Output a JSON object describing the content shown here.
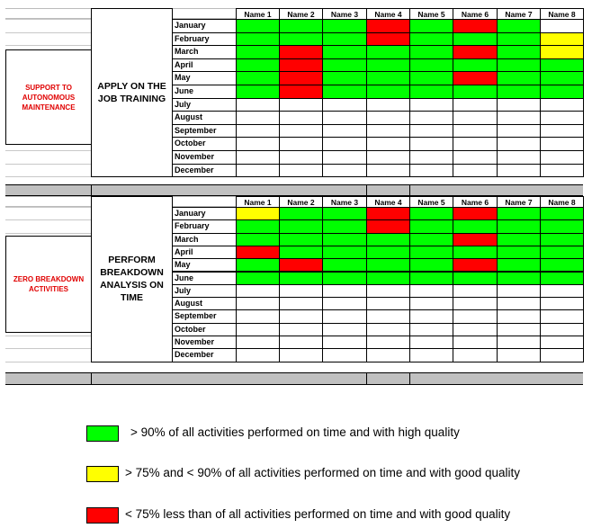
{
  "colors": {
    "green": "#00ff00",
    "yellow": "#ffff00",
    "red": "#ff0000",
    "divider_gray": "#c0c0c0",
    "section_text_red": "#e00000"
  },
  "names": [
    "Name 1",
    "Name 2",
    "Name 3",
    "Name 4",
    "Name 5",
    "Name 6",
    "Name 7",
    "Name 8"
  ],
  "months": [
    "January",
    "February",
    "March",
    "April",
    "May",
    "June",
    "July",
    "August",
    "September",
    "October",
    "November",
    "December"
  ],
  "blocks": [
    {
      "section": "SUPPORT TO AUTONOMOUS MAINTENANCE",
      "activity": "APPLY ON THE JOB TRAINING",
      "status": [
        [
          "G",
          "G",
          "G",
          "R",
          "G",
          "R",
          "G",
          "W"
        ],
        [
          "G",
          "G",
          "G",
          "R",
          "G",
          "G",
          "G",
          "Y"
        ],
        [
          "G",
          "R",
          "G",
          "G",
          "G",
          "R",
          "G",
          "Y"
        ],
        [
          "G",
          "R",
          "G",
          "G",
          "G",
          "G",
          "G",
          "G"
        ],
        [
          "G",
          "R",
          "G",
          "G",
          "G",
          "R",
          "G",
          "G"
        ],
        [
          "G",
          "R",
          "G",
          "G",
          "G",
          "G",
          "G",
          "G"
        ],
        [
          "W",
          "W",
          "W",
          "W",
          "W",
          "W",
          "W",
          "W"
        ],
        [
          "W",
          "W",
          "W",
          "W",
          "W",
          "W",
          "W",
          "W"
        ],
        [
          "W",
          "W",
          "W",
          "W",
          "W",
          "W",
          "W",
          "W"
        ],
        [
          "W",
          "W",
          "W",
          "W",
          "W",
          "W",
          "W",
          "W"
        ],
        [
          "W",
          "W",
          "W",
          "W",
          "W",
          "W",
          "W",
          "W"
        ],
        [
          "W",
          "W",
          "W",
          "W",
          "W",
          "W",
          "W",
          "W"
        ]
      ]
    },
    {
      "section": "ZERO BREAKDOWN ACTIVITIES",
      "activity": "PERFORM BREAKDOWN ANALYSIS ON TIME",
      "status": [
        [
          "Y",
          "G",
          "G",
          "R",
          "G",
          "R",
          "G",
          "G"
        ],
        [
          "G",
          "G",
          "G",
          "R",
          "G",
          "G",
          "G",
          "G"
        ],
        [
          "G",
          "G",
          "G",
          "G",
          "G",
          "R",
          "G",
          "G"
        ],
        [
          "R",
          "G",
          "G",
          "G",
          "G",
          "G",
          "G",
          "G"
        ],
        [
          "G",
          "R",
          "G",
          "G",
          "G",
          "R",
          "G",
          "G"
        ],
        [
          "G",
          "G",
          "G",
          "G",
          "G",
          "G",
          "G",
          "G"
        ],
        [
          "W",
          "W",
          "W",
          "W",
          "W",
          "W",
          "W",
          "W"
        ],
        [
          "W",
          "W",
          "W",
          "W",
          "W",
          "W",
          "W",
          "W"
        ],
        [
          "W",
          "W",
          "W",
          "W",
          "W",
          "W",
          "W",
          "W"
        ],
        [
          "W",
          "W",
          "W",
          "W",
          "W",
          "W",
          "W",
          "W"
        ],
        [
          "W",
          "W",
          "W",
          "W",
          "W",
          "W",
          "W",
          "W"
        ],
        [
          "W",
          "W",
          "W",
          "W",
          "W",
          "W",
          "W",
          "W"
        ]
      ]
    }
  ],
  "legend": [
    {
      "color": "#00ff00",
      "text": "> 90% of all activities performed on time and with high quality"
    },
    {
      "color": "#ffff00",
      "text": "> 75% and <  90% of all activities performed on time and with good quality"
    },
    {
      "color": "#ff0000",
      "text": "< 75% less than of all activities performed on time and with good quality"
    }
  ]
}
